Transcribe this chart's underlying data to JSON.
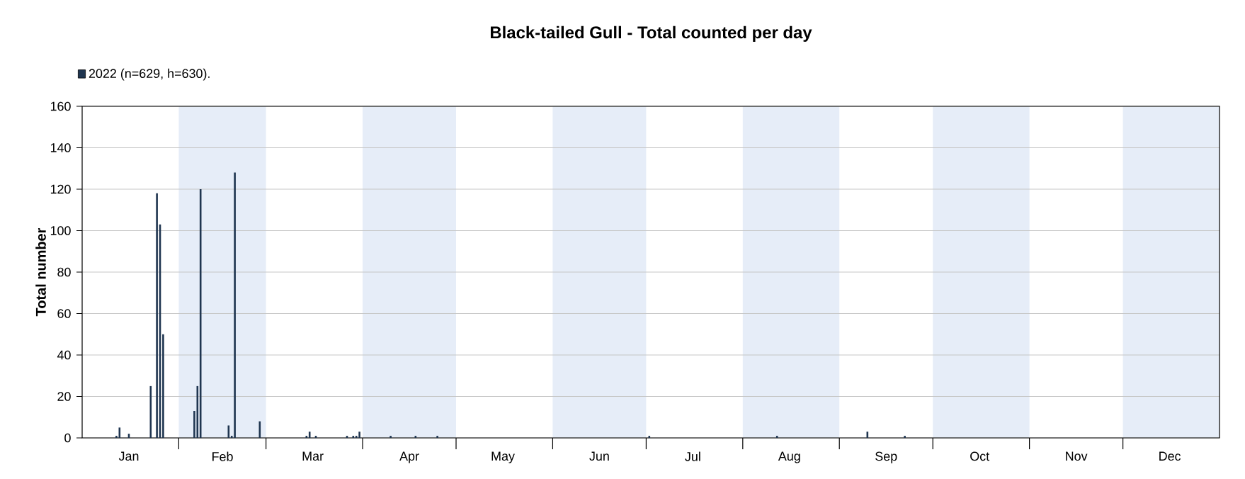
{
  "chart_data": {
    "type": "bar",
    "title": "Black-tailed Gull - Total counted per day",
    "ylabel": "Total number",
    "x": [
      "2022-01-12",
      "2022-01-13",
      "2022-01-16",
      "2022-01-23",
      "2022-01-25",
      "2022-01-26",
      "2022-01-27",
      "2022-02-06",
      "2022-02-07",
      "2022-02-08",
      "2022-02-17",
      "2022-02-18",
      "2022-02-19",
      "2022-02-27",
      "2022-03-14",
      "2022-03-15",
      "2022-03-17",
      "2022-03-27",
      "2022-03-29",
      "2022-03-30",
      "2022-03-31",
      "2022-04-10",
      "2022-04-18",
      "2022-04-25",
      "2022-07-02",
      "2022-08-12",
      "2022-09-10",
      "2022-09-22"
    ],
    "series": [
      {
        "name": "2022 (n=629, h=630).",
        "color": "#1f3550",
        "values": [
          1,
          5,
          2,
          25,
          118,
          103,
          50,
          13,
          25,
          120,
          6,
          1,
          128,
          8,
          1,
          3,
          1,
          1,
          1,
          1,
          3,
          1,
          1,
          1,
          1,
          1,
          3,
          1
        ]
      }
    ],
    "xlim": [
      "2022-01-01",
      "2023-01-01"
    ],
    "xticks": [
      {
        "value": "2022-01-16",
        "label": "Jan"
      },
      {
        "value": "2022-02-01",
        "label": null
      },
      {
        "value": "2022-02-15",
        "label": "Feb"
      },
      {
        "value": "2022-03-01",
        "label": null
      },
      {
        "value": "2022-03-16",
        "label": "Mar"
      },
      {
        "value": "2022-04-01",
        "label": null
      },
      {
        "value": "2022-04-16",
        "label": "Apr"
      },
      {
        "value": "2022-05-01",
        "label": null
      },
      {
        "value": "2022-05-16",
        "label": "May"
      },
      {
        "value": "2022-06-01",
        "label": null
      },
      {
        "value": "2022-06-16",
        "label": "Jun"
      },
      {
        "value": "2022-07-01",
        "label": null
      },
      {
        "value": "2022-07-16",
        "label": "Jul"
      },
      {
        "value": "2022-08-01",
        "label": null
      },
      {
        "value": "2022-08-16",
        "label": "Aug"
      },
      {
        "value": "2022-09-01",
        "label": null
      },
      {
        "value": "2022-09-16",
        "label": "Sep"
      },
      {
        "value": "2022-10-01",
        "label": null
      },
      {
        "value": "2022-10-16",
        "label": "Oct"
      },
      {
        "value": "2022-11-01",
        "label": null
      },
      {
        "value": "2022-11-16",
        "label": "Nov"
      },
      {
        "value": "2022-12-01",
        "label": null
      },
      {
        "value": "2022-12-16",
        "label": "Dec"
      }
    ],
    "ylim": [
      0,
      160
    ],
    "yticks": [
      0,
      20,
      40,
      60,
      80,
      100,
      120,
      140,
      160
    ],
    "bands": [
      {
        "axis": "x",
        "from": "2022-02-01",
        "to": "2022-03-01",
        "color": "#e6edf8"
      },
      {
        "axis": "x",
        "from": "2022-04-01",
        "to": "2022-05-01",
        "color": "#e6edf8"
      },
      {
        "axis": "x",
        "from": "2022-06-01",
        "to": "2022-07-01",
        "color": "#e6edf8"
      },
      {
        "axis": "x",
        "from": "2022-08-01",
        "to": "2022-09-01",
        "color": "#e6edf8"
      },
      {
        "axis": "x",
        "from": "2022-10-01",
        "to": "2022-11-01",
        "color": "#e6edf8"
      },
      {
        "axis": "x",
        "from": "2022-12-01",
        "to": "2023-01-01",
        "color": "#e6edf8"
      }
    ],
    "grid": "y",
    "legend": "top left"
  }
}
